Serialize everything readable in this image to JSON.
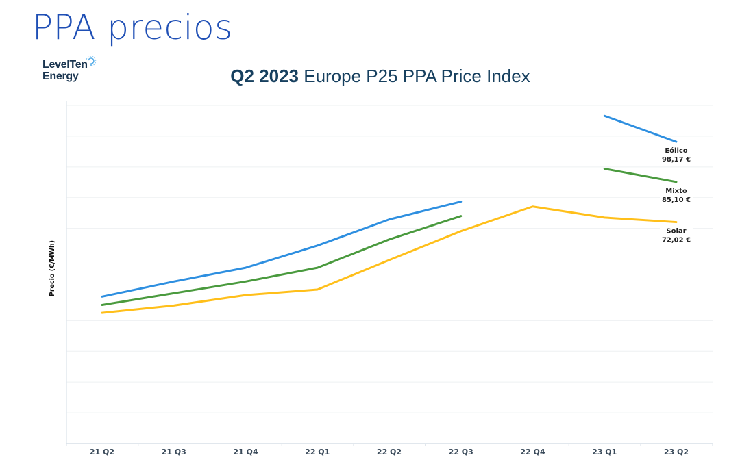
{
  "page": {
    "title": "PPA precios"
  },
  "logo": {
    "line1": "LevelTen",
    "line2": "Energy",
    "icon": "signal-icon"
  },
  "chart_data": {
    "type": "line",
    "title": "Q2 2023 Europe P25 PPA Price Index",
    "title_bold": "Q2 2023",
    "title_rest": " Europe P25 PPA Price Index",
    "xlabel": "",
    "ylabel": "Precio (€/MWh)",
    "ylim": [
      0,
      110
    ],
    "yticks": [
      0,
      10,
      20,
      30,
      40,
      50,
      60,
      70,
      80,
      90,
      100,
      110
    ],
    "ytick_labels_visible": false,
    "grid": true,
    "categories": [
      "21 Q2",
      "21 Q3",
      "21 Q4",
      "22 Q1",
      "22 Q2",
      "22 Q3",
      "22 Q4",
      "23 Q1",
      "23 Q2"
    ],
    "series": [
      {
        "name": "Eólico",
        "color": "#2e8fe0",
        "values": [
          47.8,
          52.7,
          57.2,
          64.4,
          72.9,
          78.7,
          null,
          106.6,
          98.17
        ],
        "end_label": "Eólico",
        "end_value_label": "98,17 €"
      },
      {
        "name": "Mixto",
        "color": "#4a9a3e",
        "values": [
          45.1,
          48.9,
          52.7,
          57.2,
          66.4,
          74.0,
          null,
          89.4,
          85.1
        ],
        "end_label": "Mixto",
        "end_value_label": "85,10 €"
      },
      {
        "name": "Solar",
        "color": "#ffbf1a",
        "values": [
          42.5,
          44.9,
          48.3,
          50.1,
          59.7,
          69.1,
          77.1,
          73.5,
          72.02
        ],
        "end_label": "Solar",
        "end_value_label": "72,02 €"
      }
    ]
  }
}
